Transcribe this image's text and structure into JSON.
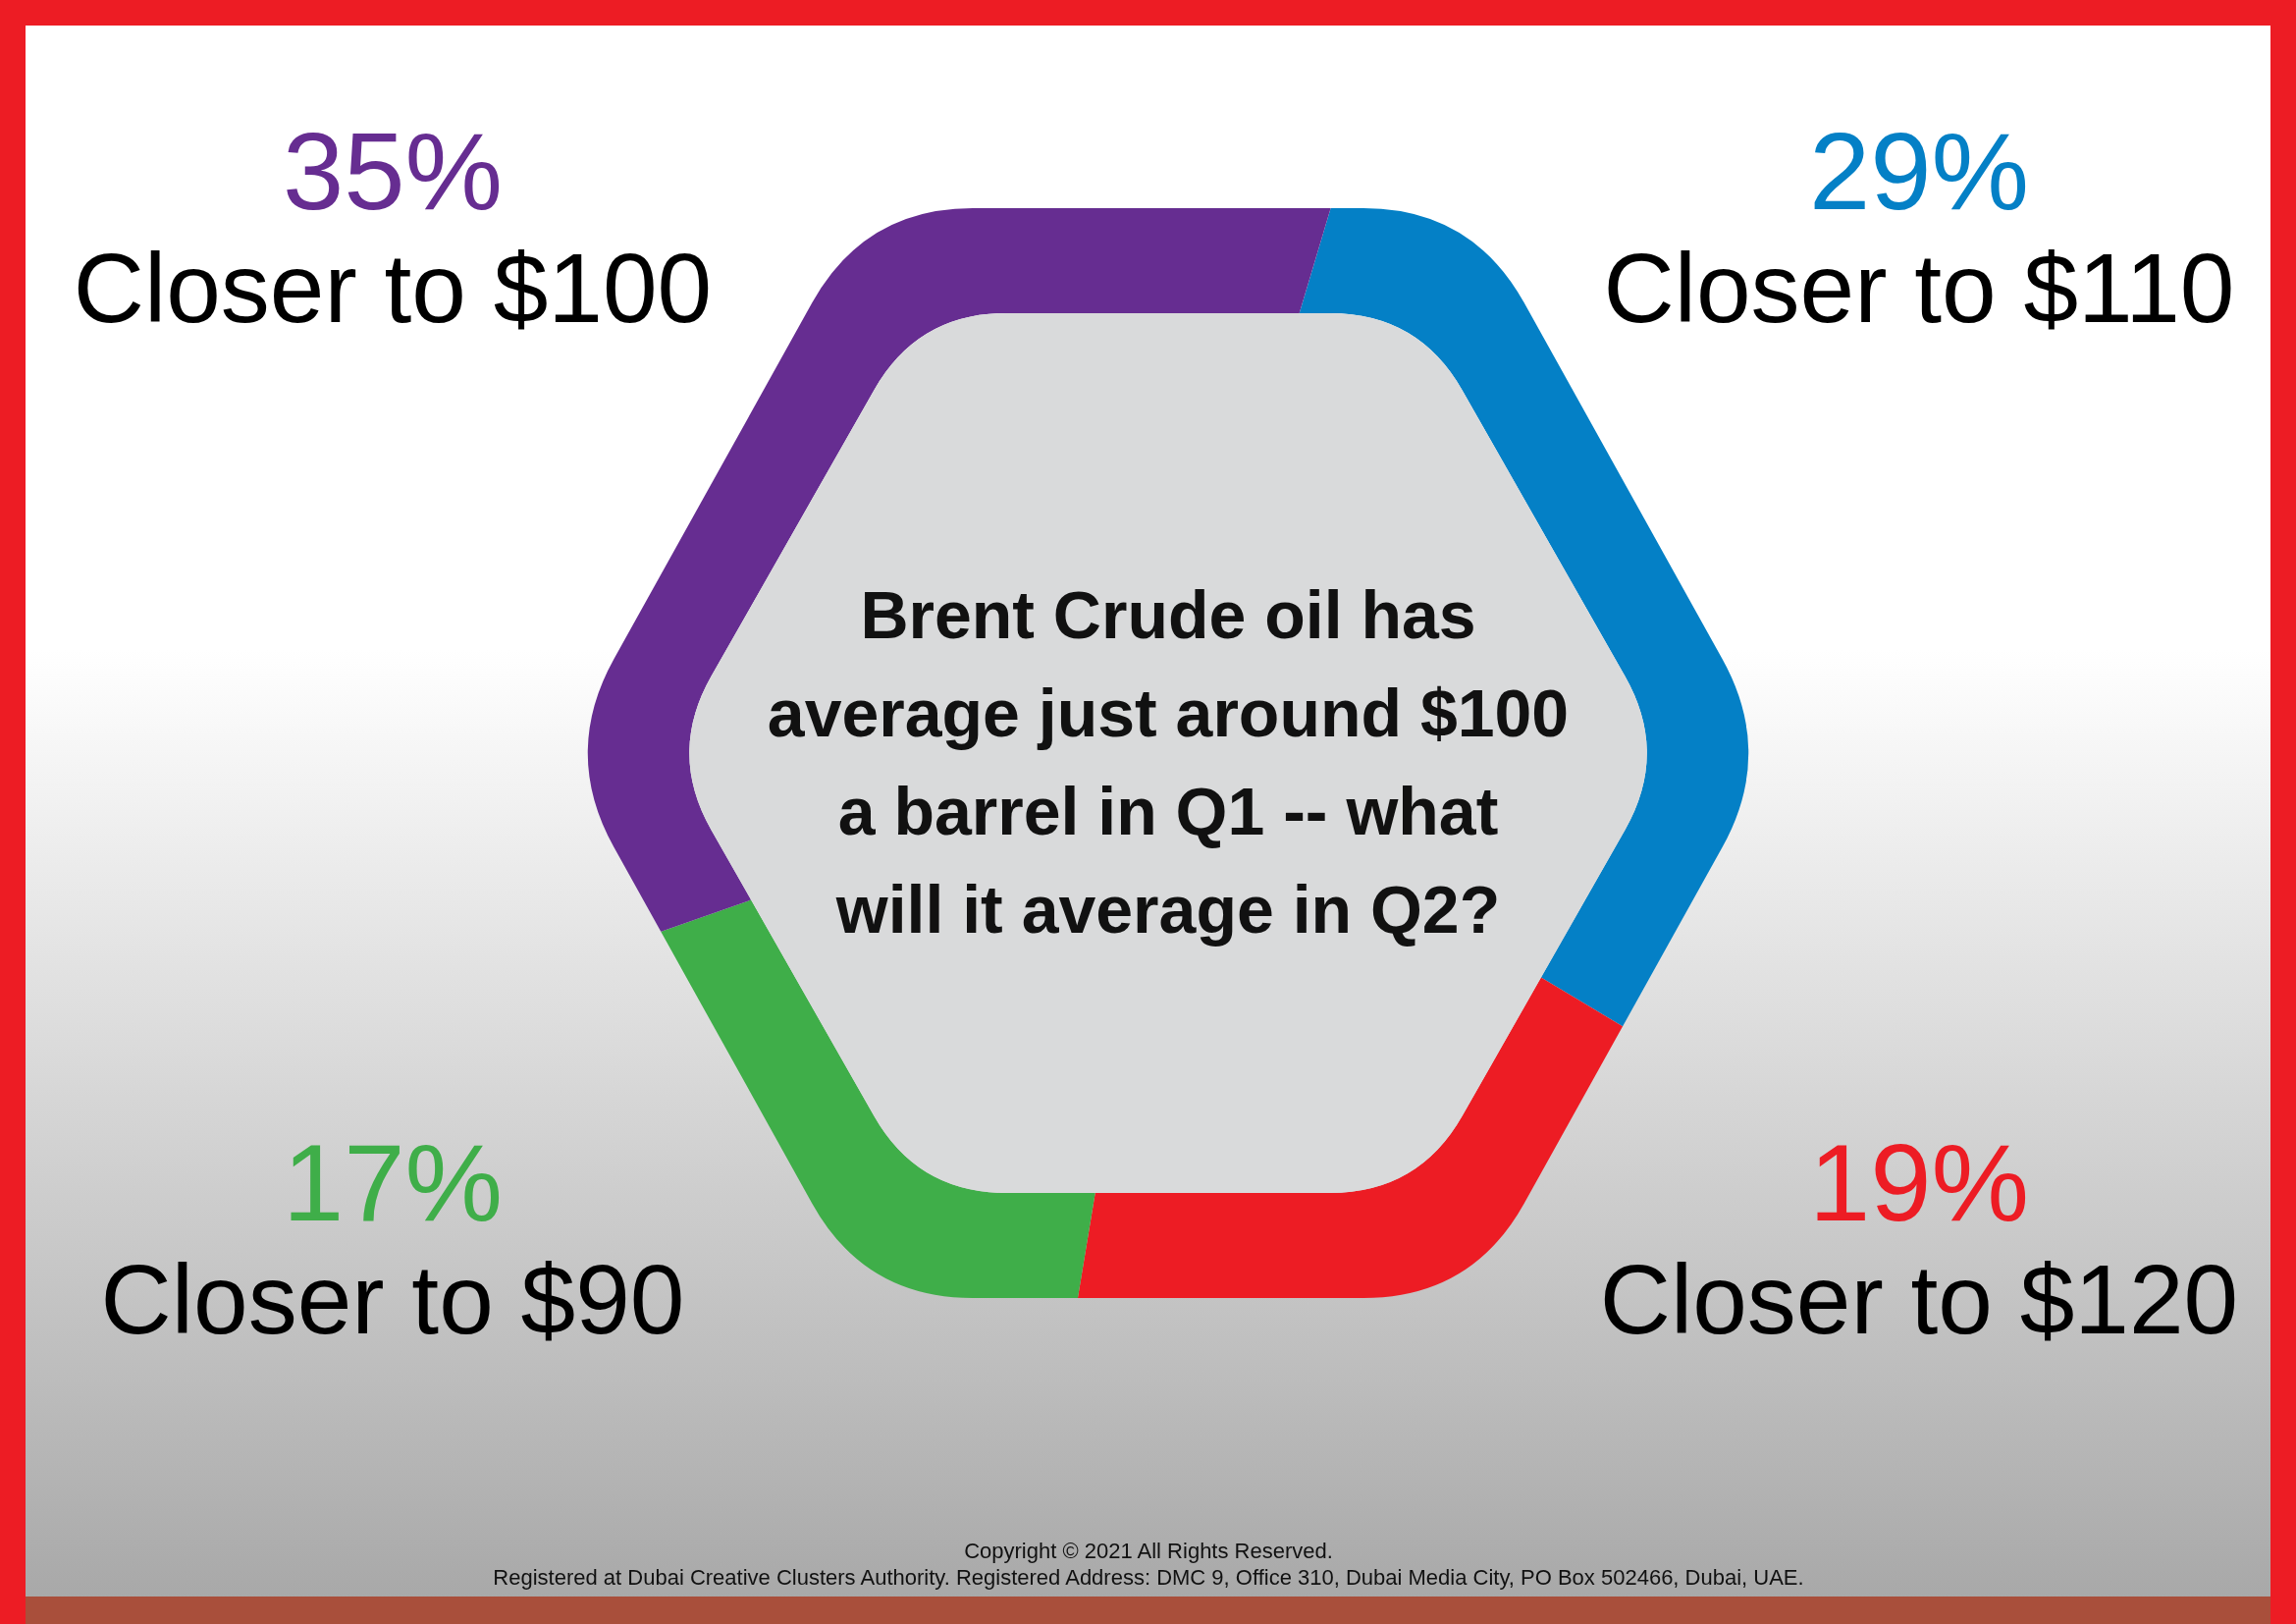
{
  "chart_data": {
    "type": "donut",
    "title": "Brent Crude oil has average just around $100 a barrel in Q1 -- what will it average in Q2?",
    "categories": [
      "Closer to $110",
      "Closer to $120",
      "Closer to $90",
      "Closer to $100"
    ],
    "values": [
      29,
      19,
      17,
      35
    ],
    "colors": [
      "#0480c6",
      "#ed1c24",
      "#3fae49",
      "#662d91"
    ],
    "value_labels": [
      "29%",
      "19%",
      "17%",
      "35%"
    ],
    "annotations": [
      "Copyright © 2021 All Rights Reserved.",
      "Registered at Dubai Creative Clusters Authority. Registered Address: DMC 9, Office 310, Dubai Media City, PO Box 502466, Dubai, UAE."
    ]
  }
}
